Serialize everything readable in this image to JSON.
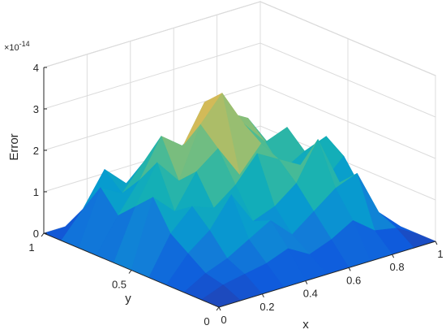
{
  "chart_data": {
    "type": "surface",
    "xlabel": "x",
    "ylabel": "y",
    "zlabel": "Error",
    "z_exponent_label": "×10",
    "z_exponent_power": "-14",
    "x_ticks": [
      "0",
      "0.2",
      "0.4",
      "0.6",
      "0.8",
      "1"
    ],
    "y_ticks": [
      "0",
      "0.5",
      "1"
    ],
    "z_ticks": [
      "0",
      "1",
      "2",
      "3",
      "4"
    ],
    "xlim": [
      0,
      1
    ],
    "ylim": [
      0,
      1
    ],
    "zlim": [
      0,
      4
    ],
    "z_units": "1e-14",
    "grid": true,
    "colormap": "parula",
    "x": [
      0,
      0.1,
      0.2,
      0.3,
      0.4,
      0.5,
      0.6,
      0.7,
      0.8,
      0.9,
      1
    ],
    "y": [
      0,
      0.1,
      0.2,
      0.3,
      0.4,
      0.5,
      0.6,
      0.7,
      0.8,
      0.9,
      1
    ],
    "z": [
      [
        0,
        0,
        0,
        0,
        0,
        0,
        0,
        0,
        0,
        0,
        0
      ],
      [
        0,
        0.2,
        0.3,
        0.4,
        0.6,
        0.3,
        0.5,
        0.8,
        0.4,
        0.3,
        0
      ],
      [
        0,
        0.3,
        0.5,
        0.8,
        1.1,
        0.6,
        1.0,
        1.4,
        1.6,
        0.5,
        0
      ],
      [
        0,
        0.6,
        1.0,
        1.7,
        0.9,
        1.1,
        1.5,
        2.4,
        1.2,
        0.9,
        0
      ],
      [
        0,
        0.9,
        1.4,
        1.2,
        1.6,
        2.2,
        1.9,
        1.6,
        1.0,
        1.5,
        0
      ],
      [
        0,
        1.6,
        1.1,
        1.9,
        2.3,
        1.5,
        2.1,
        1.3,
        1.6,
        1.8,
        0
      ],
      [
        0,
        1.2,
        2.1,
        1.5,
        2.7,
        3.3,
        2.4,
        1.8,
        2.0,
        1.1,
        0
      ],
      [
        0,
        0.8,
        1.5,
        2.4,
        2.0,
        2.9,
        2.5,
        2.2,
        1.4,
        0.9,
        0
      ],
      [
        0,
        1.3,
        1.0,
        1.6,
        1.4,
        1.8,
        2.1,
        1.6,
        1.2,
        0.6,
        0
      ],
      [
        0,
        0.6,
        1.4,
        0.9,
        1.2,
        1.1,
        1.3,
        0.9,
        0.7,
        0.4,
        0
      ],
      [
        0,
        0,
        0,
        0,
        0,
        0,
        0,
        0,
        0,
        0,
        0
      ]
    ]
  }
}
